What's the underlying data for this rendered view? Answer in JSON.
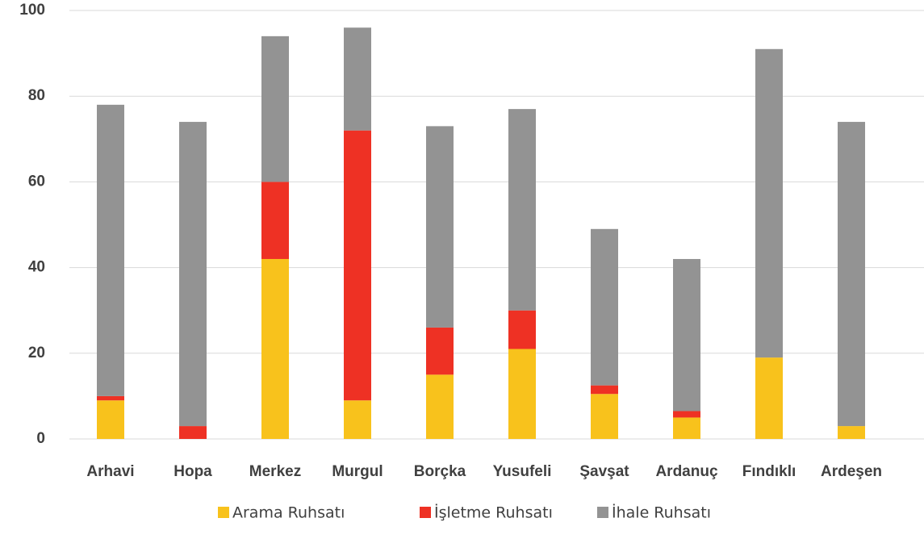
{
  "chart_data": {
    "type": "stacked_bar",
    "categories": [
      "Arhavi",
      "Hopa",
      "Merkez",
      "Murgul",
      "Borçka",
      "Yusufeli",
      "Şavşat",
      "Ardanuç",
      "Fındıklı",
      "Ardeşen"
    ],
    "series": [
      {
        "name": "Arama Ruhsatı",
        "color": "#f8c21c",
        "values": [
          9,
          0,
          42,
          9,
          15,
          21,
          10.5,
          5,
          19,
          3
        ]
      },
      {
        "name": "İşletme Ruhsatı",
        "color": "#ee3124",
        "values": [
          1,
          3,
          18,
          63,
          11,
          9,
          2,
          1.5,
          0,
          0
        ]
      },
      {
        "name": "İhale Ruhsatı",
        "color": "#939393",
        "values": [
          68,
          71,
          34,
          24,
          47,
          47,
          36.5,
          35.5,
          72,
          71
        ]
      }
    ],
    "ylim": [
      0,
      100
    ],
    "yticks": [
      0,
      20,
      40,
      60,
      80,
      100
    ],
    "grid": true,
    "legend": "bottom"
  }
}
